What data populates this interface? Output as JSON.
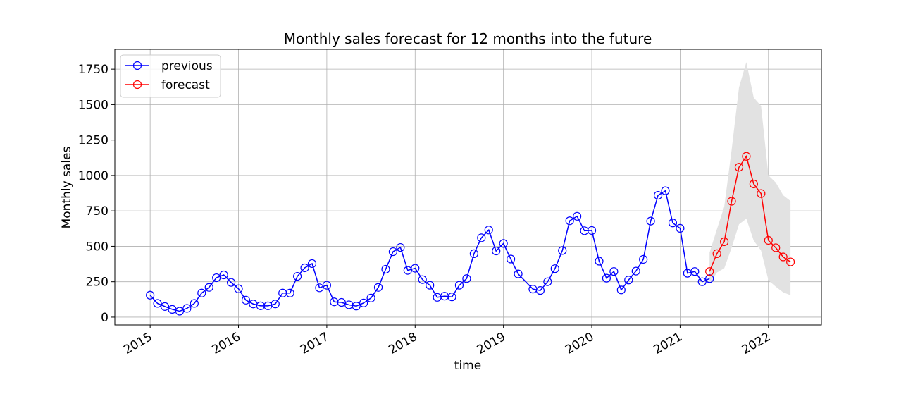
{
  "chart_data": {
    "type": "line",
    "title": "Monthly sales forecast for 12 months into the future",
    "xlabel": "time",
    "ylabel": "Monthly sales",
    "ylim": [
      -55,
      1890
    ],
    "xlim": [
      2014.6,
      2022.6
    ],
    "grid": true,
    "legend_position": "top-left",
    "yticks": [
      0,
      250,
      500,
      750,
      1000,
      1250,
      1500,
      1750
    ],
    "ytick_labels": [
      "0",
      "250",
      "500",
      "750",
      "1000",
      "1250",
      "1500",
      "1750"
    ],
    "xticks": [
      2015,
      2016,
      2017,
      2018,
      2019,
      2020,
      2021,
      2022
    ],
    "xtick_labels": [
      "2015",
      "2016",
      "2017",
      "2018",
      "2019",
      "2020",
      "2021",
      "2022"
    ],
    "colors": {
      "previous": "#0000ff",
      "forecast": "#ff0000",
      "band": "#e2e2e2",
      "grid": "#b0b0b0"
    },
    "series": [
      {
        "name": "previous",
        "x": [
          2015.0,
          2015.0833,
          2015.1667,
          2015.25,
          2015.3333,
          2015.4167,
          2015.5,
          2015.5833,
          2015.6667,
          2015.75,
          2015.8333,
          2015.9167,
          2016.0,
          2016.0833,
          2016.1667,
          2016.25,
          2016.3333,
          2016.4167,
          2016.5,
          2016.5833,
          2016.6667,
          2016.75,
          2016.8333,
          2016.9167,
          2017.0,
          2017.0833,
          2017.1667,
          2017.25,
          2017.3333,
          2017.4167,
          2017.5,
          2017.5833,
          2017.6667,
          2017.75,
          2017.8333,
          2017.9167,
          2018.0,
          2018.0833,
          2018.1667,
          2018.25,
          2018.3333,
          2018.4167,
          2018.5,
          2018.5833,
          2018.6667,
          2018.75,
          2018.8333,
          2018.9167,
          2019.0,
          2019.0833,
          2019.1667,
          2019.3333,
          2019.4167,
          2019.5,
          2019.5833,
          2019.6667,
          2019.75,
          2019.8333,
          2019.9167,
          2020.0,
          2020.0833,
          2020.1667,
          2020.25,
          2020.3333,
          2020.4167,
          2020.5,
          2020.5833,
          2020.6667,
          2020.75,
          2020.8333,
          2020.9167,
          2021.0,
          2021.0833,
          2021.1667,
          2021.25,
          2021.3333
        ],
        "values": [
          155,
          97,
          75,
          55,
          42,
          62,
          97,
          170,
          210,
          278,
          298,
          245,
          200,
          120,
          93,
          80,
          80,
          93,
          170,
          170,
          288,
          348,
          378,
          207,
          225,
          108,
          104,
          87,
          78,
          100,
          135,
          210,
          338,
          462,
          492,
          330,
          345,
          265,
          225,
          140,
          148,
          143,
          225,
          272,
          448,
          560,
          615,
          467,
          520,
          410,
          305,
          198,
          188,
          250,
          342,
          470,
          680,
          712,
          610,
          612,
          395,
          275,
          322,
          192,
          262,
          325,
          408,
          678,
          860,
          892,
          665,
          627,
          310,
          322,
          250,
          272
        ]
      },
      {
        "name": "forecast",
        "x": [
          2021.3333,
          2021.4167,
          2021.5,
          2021.5833,
          2021.6667,
          2021.75,
          2021.8333,
          2021.9167,
          2022.0,
          2022.0833,
          2022.1667,
          2022.25
        ],
        "values": [
          322,
          448,
          532,
          818,
          1058,
          1135,
          940,
          872,
          542,
          490,
          425,
          390
        ]
      }
    ],
    "confidence_band": {
      "x": [
        2021.3333,
        2021.4167,
        2021.5,
        2021.5833,
        2021.6667,
        2021.75,
        2021.8333,
        2021.9167,
        2022.0,
        2022.0833,
        2022.1667,
        2022.25
      ],
      "lower": [
        235,
        315,
        345,
        490,
        655,
        695,
        540,
        470,
        260,
        215,
        175,
        155
      ],
      "upper": [
        455,
        620,
        780,
        1180,
        1620,
        1800,
        1550,
        1490,
        1000,
        950,
        860,
        820
      ]
    }
  }
}
